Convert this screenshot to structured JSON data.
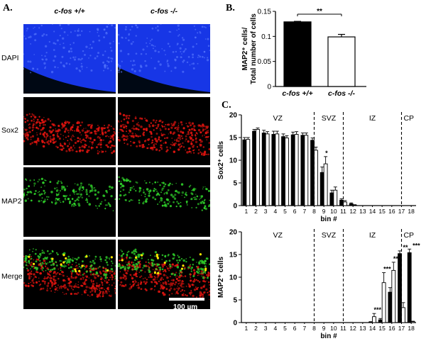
{
  "panel_a": {
    "label": "A.",
    "columns": [
      "c-fos +/+",
      "c-fos -/-"
    ],
    "rows": [
      "DAPI",
      "Sox2",
      "MAP2",
      "Merge"
    ],
    "scale_bar": "100 µm",
    "colors": {
      "DAPI": "#1a3cff",
      "Sox2": "#e0140f",
      "MAP2": "#2fd22a",
      "background": "#000000"
    }
  },
  "panel_b_label": "B.",
  "panel_c_label": "C.",
  "chart_data": [
    {
      "id": "B",
      "type": "bar",
      "categories": [
        "c-fos +/+",
        "c-fos -/-"
      ],
      "values": [
        0.129,
        0.099
      ],
      "errors": [
        0.001,
        0.005
      ],
      "fills": [
        "#000000",
        "#ffffff"
      ],
      "ylabel_lines": [
        "MAP2⁺ cells/",
        "Total number of cells"
      ],
      "ylim": [
        0,
        0.15
      ],
      "yticks": [
        0,
        0.05,
        0.1,
        0.15
      ],
      "ytick_labels": [
        "0",
        "0.05",
        "0.1",
        "0.15"
      ],
      "significance": "**"
    },
    {
      "id": "C-top",
      "type": "bar",
      "ylabel": "Sox2⁺ cells",
      "xlabel": "bin #",
      "ylim": [
        0,
        20
      ],
      "yticks": [
        0,
        5,
        10,
        15,
        20
      ],
      "bins": [
        "1",
        "2",
        "3",
        "4",
        "5",
        "6",
        "7",
        "8",
        "9",
        "10",
        "11",
        "12",
        "13",
        "14",
        "15",
        "16",
        "17",
        "18"
      ],
      "series": [
        {
          "name": "c-fos +/+",
          "fill": "#000000",
          "values": [
            14.5,
            16.4,
            16.0,
            15.7,
            15.2,
            15.6,
            15.5,
            14.4,
            7.3,
            2.8,
            1.2,
            0.4,
            0,
            0,
            0,
            0,
            0,
            0
          ],
          "errors": [
            0.5,
            0.4,
            0.6,
            0.7,
            0.6,
            0.6,
            0.5,
            0.5,
            1.2,
            0.6,
            0.3,
            0.2,
            0,
            0,
            0,
            0,
            0,
            0
          ]
        },
        {
          "name": "c-fos -/-",
          "fill": "#ffffff",
          "values": [
            14.6,
            16.8,
            15.8,
            15.8,
            14.9,
            15.7,
            15.5,
            12.2,
            9.2,
            3.4,
            0.8,
            0.1,
            0,
            0,
            0,
            0,
            0,
            0
          ],
          "errors": [
            0.4,
            0.3,
            0.5,
            0.6,
            0.5,
            0.6,
            0.5,
            0.7,
            1.6,
            0.7,
            0.3,
            0.1,
            0,
            0,
            0,
            0,
            0,
            0
          ]
        }
      ],
      "regions": [
        "VZ",
        "SVZ",
        "IZ",
        "CP"
      ],
      "dividers": [
        7.5,
        10.5,
        16.5
      ],
      "annotations": [
        {
          "bin": 9,
          "text": "*"
        }
      ]
    },
    {
      "id": "C-bottom",
      "type": "bar",
      "ylabel": "MAP2⁺ cells",
      "xlabel": "bin #",
      "ylim": [
        0,
        20
      ],
      "yticks": [
        0,
        5,
        10,
        15,
        20
      ],
      "bins": [
        "1",
        "2",
        "3",
        "4",
        "5",
        "6",
        "7",
        "8",
        "9",
        "10",
        "11",
        "12",
        "13",
        "14",
        "15",
        "16",
        "17",
        "18"
      ],
      "series": [
        {
          "name": "c-fos +/+",
          "fill": "#000000",
          "values": [
            0,
            0,
            0,
            0,
            0,
            0,
            0,
            0,
            0,
            0,
            0,
            0,
            0,
            0.1,
            0.6,
            6.7,
            15.2,
            15.4
          ],
          "errors": [
            0,
            0,
            0,
            0,
            0,
            0,
            0,
            0,
            0,
            0,
            0,
            0,
            0,
            0.1,
            0.3,
            1.0,
            0.6,
            0.8
          ]
        },
        {
          "name": "c-fos -/-",
          "fill": "#ffffff",
          "values": [
            0,
            0,
            0,
            0,
            0,
            0,
            0,
            0,
            0,
            0,
            0,
            0,
            0,
            1.3,
            8.8,
            11.5,
            3.3,
            0.2
          ],
          "errors": [
            0,
            0,
            0,
            0,
            0,
            0,
            0,
            0,
            0,
            0,
            0,
            0,
            0,
            0.7,
            2.2,
            1.8,
            1.1,
            0.1
          ]
        }
      ],
      "regions": [
        "VZ",
        "SVZ",
        "IZ",
        "CP"
      ],
      "dividers": [
        7.5,
        10.5,
        16.5
      ],
      "annotations": [
        {
          "bin": 14,
          "text": "***"
        },
        {
          "bin": 15,
          "text": "***"
        },
        {
          "bin": 16,
          "text": "**"
        },
        {
          "bin": 17,
          "text": "**"
        },
        {
          "bin": 18,
          "text": "***"
        }
      ]
    }
  ]
}
